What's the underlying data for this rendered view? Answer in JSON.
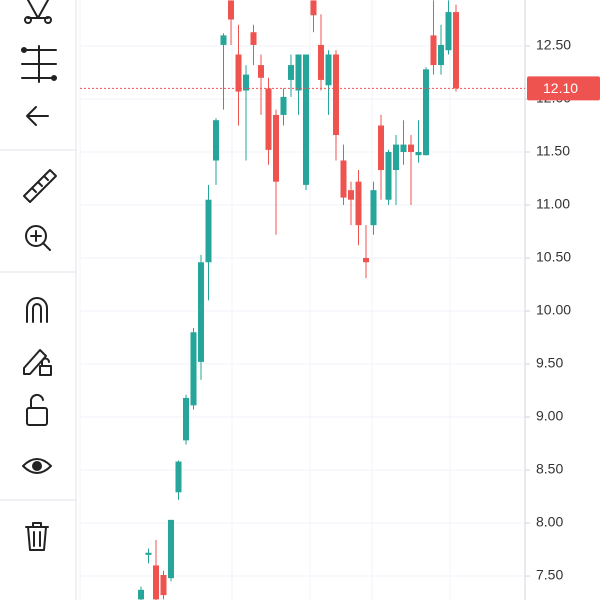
{
  "chart_data": {
    "type": "candlestick",
    "open": [
      7.28,
      7.7,
      7.6,
      7.51,
      7.48,
      8.29,
      8.78,
      9.11,
      9.52,
      10.46,
      11.42,
      12.51,
      12.93,
      12.42,
      12.08,
      12.63,
      12.32,
      12.1,
      11.85,
      11.85,
      12.18,
      12.08,
      11.19,
      12.93,
      12.51,
      12.13,
      12.42,
      11.42,
      11.14,
      11.22,
      10.5,
      10.81,
      11.75,
      11.05,
      11.33,
      11.5,
      11.57,
      11.47,
      11.47,
      12.6,
      12.32,
      12.46,
      12.82
    ],
    "high": [
      7.4,
      7.76,
      7.84,
      7.55,
      8.03,
      8.59,
      9.21,
      9.84,
      10.53,
      11.19,
      11.82,
      12.62,
      12.93,
      12.7,
      12.32,
      12.7,
      12.42,
      12.2,
      11.9,
      12.1,
      12.42,
      12.42,
      12.42,
      12.93,
      12.8,
      12.46,
      12.46,
      11.57,
      11.22,
      11.33,
      10.81,
      11.22,
      11.85,
      11.52,
      11.66,
      11.8,
      11.66,
      11.8,
      12.3,
      12.93,
      12.7,
      12.93,
      12.89
    ],
    "low": [
      7.27,
      7.62,
      7.27,
      7.28,
      7.45,
      8.22,
      8.74,
      9.07,
      9.35,
      10.1,
      11.19,
      11.9,
      12.51,
      11.75,
      11.42,
      12.32,
      11.85,
      11.38,
      10.72,
      11.75,
      12.02,
      11.85,
      11.14,
      12.63,
      12.08,
      11.85,
      11.42,
      11.0,
      10.81,
      10.62,
      10.31,
      10.72,
      11.05,
      11.0,
      11.0,
      11.38,
      11.0,
      11.4,
      11.47,
      12.23,
      12.23,
      12.42,
      12.07
    ],
    "close": [
      7.37,
      7.72,
      7.28,
      7.32,
      8.03,
      8.58,
      9.18,
      9.8,
      10.46,
      11.05,
      11.8,
      12.6,
      12.75,
      12.07,
      12.23,
      12.51,
      12.2,
      11.52,
      11.22,
      12.02,
      12.32,
      12.42,
      12.42,
      12.79,
      12.18,
      12.42,
      11.66,
      11.07,
      11.05,
      10.81,
      10.46,
      11.14,
      11.33,
      11.5,
      11.57,
      11.57,
      11.5,
      11.5,
      12.28,
      12.32,
      12.51,
      12.82,
      12.1
    ],
    "up_color": "#26a69a",
    "down_color": "#ef5350",
    "ylim": [
      7.274,
      12.934
    ],
    "yticks": [
      {
        "value": 7.5,
        "label": "7.50"
      },
      {
        "value": 8,
        "label": "8.00"
      },
      {
        "value": 8.5,
        "label": "8.50"
      },
      {
        "value": 9,
        "label": "9.00"
      },
      {
        "value": 9.5,
        "label": "9.50"
      },
      {
        "value": 10,
        "label": "10.00"
      },
      {
        "value": 10.5,
        "label": "10.50"
      },
      {
        "value": 11,
        "label": "11.00"
      },
      {
        "value": 11.5,
        "label": "11.50"
      },
      {
        "value": 12,
        "label": "12.00"
      },
      {
        "value": 12.5,
        "label": "12.50"
      }
    ],
    "grid": true,
    "last_price": {
      "value": 12.1,
      "label": "12.10"
    }
  }
}
